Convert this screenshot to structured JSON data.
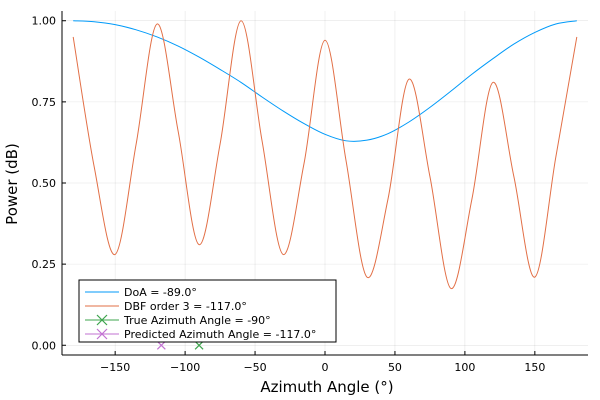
{
  "chart_data": {
    "type": "line",
    "xlabel": "Azimuth Angle (°)",
    "ylabel": "Power (dB)",
    "xlim": [
      -188,
      188
    ],
    "ylim": [
      -0.03,
      1.03
    ],
    "xticks": [
      -150,
      -100,
      -50,
      0,
      50,
      100,
      150
    ],
    "xtick_labels": [
      "−150",
      "−100",
      "−50",
      "0",
      "50",
      "100",
      "150"
    ],
    "yticks": [
      0,
      0.25,
      0.5,
      0.75,
      1.0
    ],
    "ytick_labels": [
      "0.00",
      "0.25",
      "0.50",
      "0.75",
      "1.00"
    ],
    "grid": true,
    "legend_position": "bottom-left",
    "series": [
      {
        "name": "DoA = -89.0°",
        "type": "line",
        "color": "#009af9",
        "x": [
          -180,
          -165,
          -150,
          -135,
          -120,
          -105,
          -90,
          -75,
          -60,
          -45,
          -30,
          -15,
          0,
          15,
          30,
          45,
          60,
          75,
          90,
          105,
          120,
          135,
          150,
          165,
          180
        ],
        "y": [
          1.0,
          0.997,
          0.988,
          0.972,
          0.95,
          0.922,
          0.888,
          0.85,
          0.81,
          0.765,
          0.722,
          0.683,
          0.65,
          0.63,
          0.632,
          0.652,
          0.688,
          0.733,
          0.783,
          0.835,
          0.883,
          0.928,
          0.964,
          0.99,
          1.0
        ]
      },
      {
        "name": "DBF order 3 = -117.0°",
        "type": "line",
        "color": "#e26f46",
        "x": [
          -180,
          -165,
          -150,
          -135,
          -120,
          -105,
          -90,
          -75,
          -60,
          -45,
          -30,
          -15,
          0,
          15,
          30,
          45,
          60,
          75,
          90,
          105,
          120,
          135,
          150,
          165,
          180
        ],
        "y": [
          0.95,
          0.55,
          0.28,
          0.62,
          0.99,
          0.66,
          0.31,
          0.62,
          1.0,
          0.63,
          0.28,
          0.56,
          0.94,
          0.57,
          0.21,
          0.45,
          0.82,
          0.52,
          0.175,
          0.45,
          0.81,
          0.52,
          0.21,
          0.58,
          0.95
        ]
      },
      {
        "name": "True Azimuth Angle = -90°",
        "type": "marker",
        "color": "#3ea44e",
        "x": [
          -90
        ],
        "y": [
          0
        ]
      },
      {
        "name": "Predicted Azimuth Angle = -117.0°",
        "type": "marker",
        "color": "#c271d2",
        "x": [
          -117
        ],
        "y": [
          0
        ]
      }
    ]
  }
}
